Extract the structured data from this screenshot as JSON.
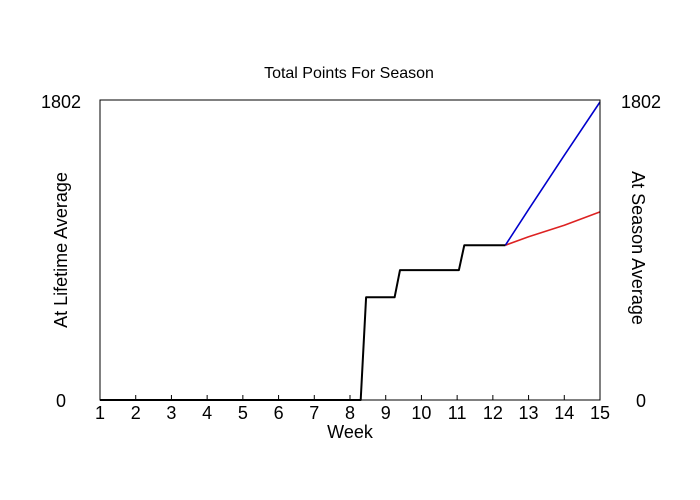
{
  "chart_data": {
    "type": "line",
    "title": "Total Points For Season",
    "xlabel": "Week",
    "ylabel_left": "At Lifetime Average",
    "ylabel_right": "At Season Average",
    "xlim": [
      1,
      15
    ],
    "ylim": [
      0,
      1802
    ],
    "x_ticks": [
      "1",
      "2",
      "3",
      "4",
      "5",
      "6",
      "7",
      "8",
      "9",
      "10",
      "11",
      "12",
      "13",
      "14",
      "15"
    ],
    "y_ticks_left": [
      "0",
      "1802"
    ],
    "y_ticks_right": [
      "0",
      "1802"
    ],
    "colors": {
      "actual": "#000000",
      "lifetime": "#0000cc",
      "season": "#dd2222",
      "left_label": "#0000cc",
      "right_label": "#dd2222"
    },
    "series": [
      {
        "key": "actual",
        "points": [
          [
            1,
            0
          ],
          [
            8.3,
            0
          ],
          [
            8.45,
            617
          ],
          [
            9.25,
            617
          ],
          [
            9.4,
            780
          ],
          [
            11.05,
            780
          ],
          [
            11.2,
            930
          ],
          [
            12.35,
            930
          ]
        ]
      },
      {
        "key": "lifetime",
        "points": [
          [
            12.35,
            930
          ],
          [
            13.0,
            1145
          ],
          [
            14.0,
            1470
          ],
          [
            15.0,
            1790
          ]
        ]
      },
      {
        "key": "season",
        "points": [
          [
            12.35,
            930
          ],
          [
            13.0,
            980
          ],
          [
            14.0,
            1050
          ],
          [
            15.0,
            1130
          ]
        ]
      }
    ]
  }
}
